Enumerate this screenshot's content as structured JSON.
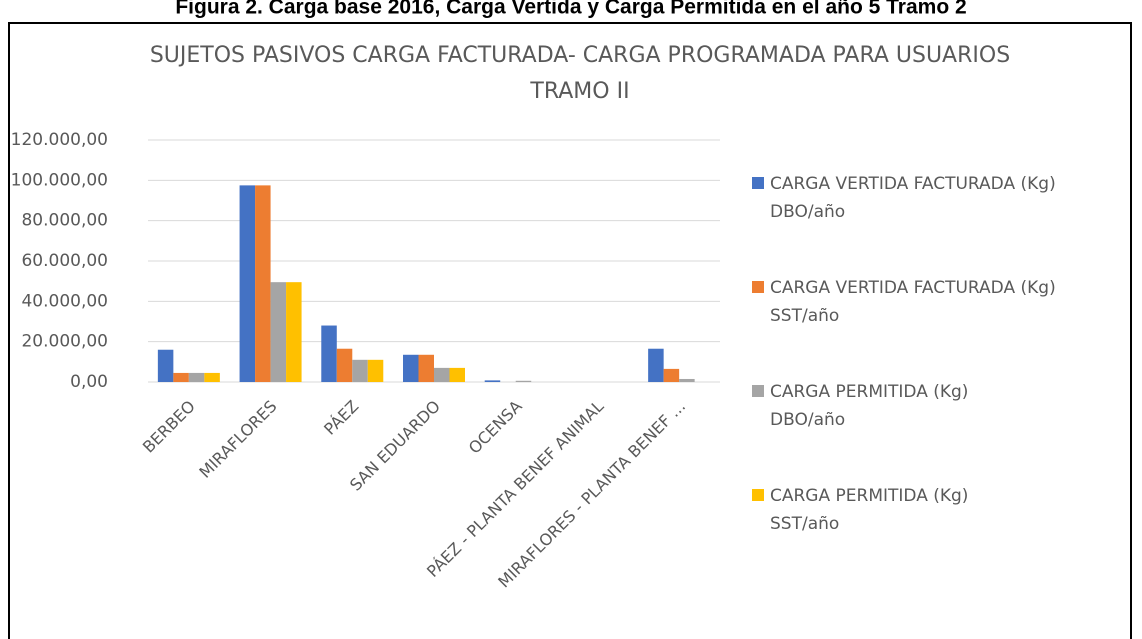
{
  "caption": "Figura 2. Carga base 2016, Carga Vertida y Carga Permitida en el año 5 Tramo 2",
  "chart_data": {
    "type": "bar",
    "title": "SUJETOS PASIVOS CARGA FACTURADA- CARGA PROGRAMADA PARA USUARIOS TRAMO II",
    "categories": [
      "BERBEO",
      "MIRAFLORES",
      "PÁEZ",
      "SAN EDUARDO",
      "OCENSA",
      "PÁEZ - PLANTA BENEF ANIMAL",
      "MIRAFLORES - PLANTA BENEF ..."
    ],
    "series": [
      {
        "name": "CARGA VERTIDA FACTURADA (Kg) DBO/año",
        "color": "#4472c4",
        "values": [
          16000,
          97500,
          28000,
          13500,
          800,
          0,
          16500
        ]
      },
      {
        "name": "CARGA VERTIDA FACTURADA (Kg) SST/año",
        "color": "#ed7d31",
        "values": [
          4500,
          97500,
          16500,
          13500,
          0,
          0,
          6500
        ]
      },
      {
        "name": "CARGA PERMITIDA  (Kg) DBO/año",
        "color": "#a5a5a5",
        "values": [
          4500,
          49500,
          11000,
          7000,
          600,
          0,
          1500
        ]
      },
      {
        "name": "CARGA PERMITIDA  (Kg) SST/año",
        "color": "#ffc000",
        "values": [
          4500,
          49500,
          11000,
          7000,
          0,
          0,
          0
        ]
      }
    ],
    "ylim": [
      0,
      120000
    ],
    "yticks": [
      {
        "value": 0,
        "label": "0,00"
      },
      {
        "value": 20000,
        "label": "20.000,00"
      },
      {
        "value": 40000,
        "label": "40.000,00"
      },
      {
        "value": 60000,
        "label": "60.000,00"
      },
      {
        "value": 80000,
        "label": "80.000,00"
      },
      {
        "value": 100000,
        "label": "100.000,00"
      },
      {
        "value": 120000,
        "label": "120.000,00"
      }
    ],
    "grid": true,
    "legend": "right"
  }
}
